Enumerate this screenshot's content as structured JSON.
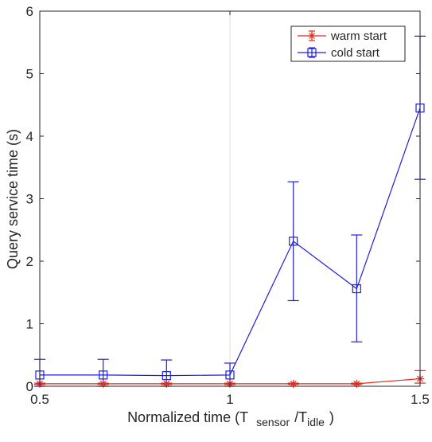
{
  "chart_data": {
    "type": "line",
    "title": "",
    "xlabel": "Normalized time (T",
    "xlabel_sub1": "sensor",
    "xlabel_mid": "/T",
    "xlabel_sub2": "idle",
    "xlabel_end": ")",
    "ylabel": "Query service time (s)",
    "xlim": [
      0.5,
      1.5
    ],
    "ylim": [
      0,
      6
    ],
    "xticks": [
      0.5,
      1,
      1.5
    ],
    "xtick_labels": [
      "0.5",
      "1",
      "1.5"
    ],
    "yticks": [
      0,
      1,
      2,
      3,
      4,
      5,
      6
    ],
    "ytick_labels": [
      "0",
      "1",
      "2",
      "3",
      "4",
      "5",
      "6"
    ],
    "grid": true,
    "legend_position": "top-right",
    "x": [
      0.5,
      0.6667,
      0.8333,
      1.0,
      1.1667,
      1.3333,
      1.5
    ],
    "series": [
      {
        "name": "warm start",
        "color": "#e32a1c",
        "marker": "asterisk",
        "values": [
          0.04,
          0.04,
          0.04,
          0.04,
          0.04,
          0.04,
          0.12
        ],
        "error_low": [
          0.03,
          0.03,
          0.03,
          0.03,
          0.03,
          0.03,
          0.05
        ],
        "error_high": [
          0.05,
          0.05,
          0.05,
          0.05,
          0.05,
          0.05,
          0.25
        ]
      },
      {
        "name": "cold start",
        "color": "#1f1fd6",
        "marker": "square",
        "values": [
          0.18,
          0.18,
          0.17,
          0.18,
          2.32,
          1.56,
          4.45
        ],
        "error_low": [
          0.0,
          0.0,
          0.0,
          0.0,
          1.37,
          0.71,
          3.31
        ],
        "error_high": [
          0.43,
          0.43,
          0.42,
          0.37,
          3.27,
          2.42,
          5.6
        ]
      }
    ]
  }
}
